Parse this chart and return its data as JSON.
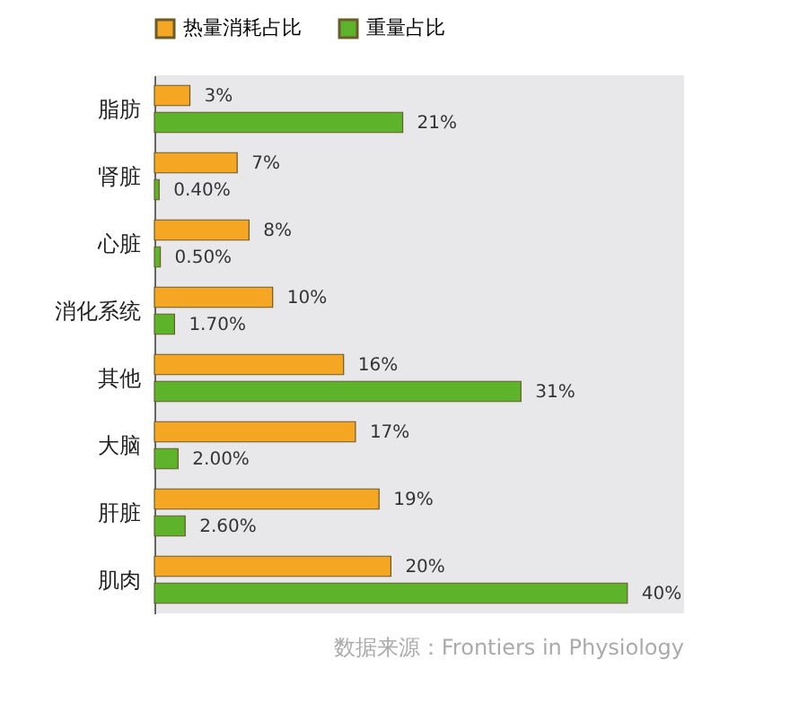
{
  "chart_data": {
    "type": "bar",
    "orientation": "horizontal",
    "categories": [
      "脂肪",
      "肾脏",
      "心脏",
      "消化系统",
      "其他",
      "大脑",
      "肝脏",
      "肌肉"
    ],
    "series": [
      {
        "name": "热量消耗占比",
        "color": "#f5a623",
        "values": [
          3,
          7,
          8,
          10,
          16,
          17,
          19,
          20
        ],
        "value_labels": [
          "3%",
          "7%",
          "8%",
          "10%",
          "16%",
          "17%",
          "19%",
          "20%"
        ]
      },
      {
        "name": "重量占比",
        "color": "#5db42a",
        "values": [
          21,
          0.4,
          0.5,
          1.7,
          31,
          2,
          2.6,
          40
        ],
        "value_labels": [
          "21%",
          "0.40%",
          "0.50%",
          "1.70%",
          "31%",
          "2.00%",
          "2.60%",
          "40%"
        ]
      }
    ],
    "legend": "top",
    "annotations": [
      "数据来源：Frontiers in Physiology"
    ]
  }
}
